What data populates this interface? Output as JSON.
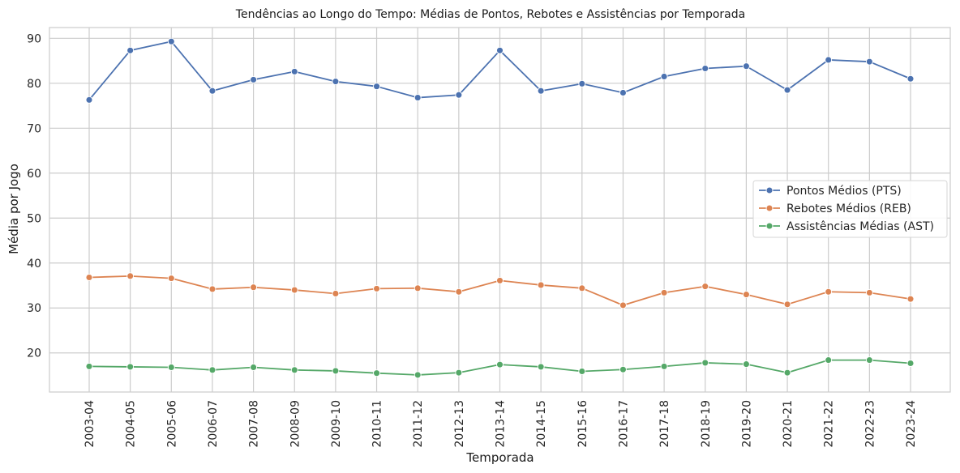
{
  "chart_data": {
    "type": "line",
    "title": "Tendências ao Longo do Tempo: Médias de Pontos, Rebotes e Assistências por Temporada",
    "xlabel": "Temporada",
    "ylabel": "Média por Jogo",
    "categories": [
      "2003-04",
      "2004-05",
      "2005-06",
      "2006-07",
      "2007-08",
      "2008-09",
      "2009-10",
      "2010-11",
      "2011-12",
      "2012-13",
      "2013-14",
      "2014-15",
      "2015-16",
      "2016-17",
      "2017-18",
      "2018-19",
      "2019-20",
      "2020-21",
      "2021-22",
      "2022-23",
      "2023-24"
    ],
    "ylim": [
      11.3,
      92.4
    ],
    "yticks": [
      20,
      30,
      40,
      50,
      60,
      70,
      80,
      90
    ],
    "grid": true,
    "legend_position": "center-right",
    "series": [
      {
        "name": "Pontos Médios (PTS)",
        "color": "#4c72b0",
        "values": [
          76.3,
          87.3,
          89.3,
          78.3,
          80.8,
          82.6,
          80.4,
          79.3,
          76.8,
          77.4,
          87.3,
          78.3,
          79.9,
          77.9,
          81.5,
          83.3,
          83.8,
          78.5,
          85.2,
          84.8,
          81.0
        ]
      },
      {
        "name": "Rebotes Médios (REB)",
        "color": "#dd8452",
        "values": [
          36.8,
          37.1,
          36.6,
          34.2,
          34.6,
          34.0,
          33.2,
          34.3,
          34.4,
          33.6,
          36.1,
          35.1,
          34.4,
          30.6,
          33.4,
          34.8,
          33.0,
          30.8,
          33.6,
          33.4,
          32.0
        ]
      },
      {
        "name": "Assistências Médias (AST)",
        "color": "#55a868",
        "values": [
          17.0,
          16.9,
          16.8,
          16.2,
          16.8,
          16.2,
          16.0,
          15.5,
          15.1,
          15.6,
          17.4,
          16.9,
          15.9,
          16.3,
          17.0,
          17.8,
          17.5,
          15.6,
          18.4,
          18.4,
          17.7
        ]
      }
    ]
  }
}
